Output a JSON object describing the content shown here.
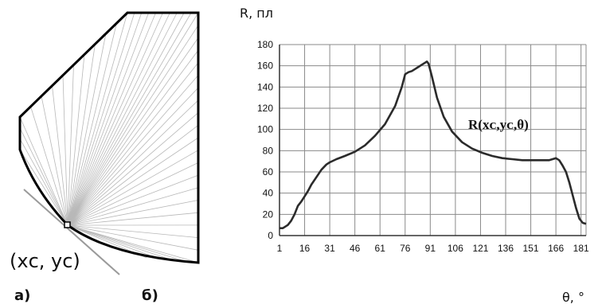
{
  "panels": {
    "a": "а)",
    "b": "б)"
  },
  "left_figure": {
    "point_label": "(xᴄ, yᴄ)",
    "ray_count": 48
  },
  "chart_data": {
    "type": "line",
    "ylabel": "R, пл",
    "xlabel": "θ, °",
    "annotation": "R(xᴄ,yᴄ,θ)",
    "xlim": [
      1,
      184
    ],
    "ylim": [
      0,
      180
    ],
    "xticks": [
      1,
      16,
      31,
      46,
      61,
      76,
      91,
      106,
      121,
      136,
      151,
      166,
      181
    ],
    "yticks": [
      0,
      20,
      40,
      60,
      80,
      100,
      120,
      140,
      160,
      180
    ],
    "grid": true,
    "series": [
      {
        "x": [
          1,
          3,
          6,
          8,
          10,
          12,
          14,
          16,
          18,
          20,
          23,
          26,
          29,
          31,
          35,
          40,
          46,
          52,
          58,
          64,
          70,
          74,
          76,
          78,
          80,
          82,
          84,
          86,
          88,
          89,
          90,
          92,
          95,
          99,
          104,
          110,
          116,
          122,
          128,
          134,
          140,
          146,
          152,
          158,
          162,
          164,
          166,
          168,
          170,
          172,
          174,
          176,
          178,
          180,
          182,
          184
        ],
        "y": [
          7,
          7,
          10,
          14,
          20,
          28,
          32,
          37,
          42,
          48,
          55,
          62,
          67,
          69,
          72,
          75,
          79,
          85,
          94,
          105,
          122,
          140,
          152,
          154,
          155,
          157,
          159,
          161,
          163,
          164,
          162,
          150,
          130,
          112,
          98,
          88,
          82,
          78,
          75,
          73,
          72,
          71,
          71,
          71,
          71,
          72,
          73,
          71,
          66,
          60,
          50,
          38,
          26,
          16,
          12,
          11
        ]
      }
    ]
  }
}
